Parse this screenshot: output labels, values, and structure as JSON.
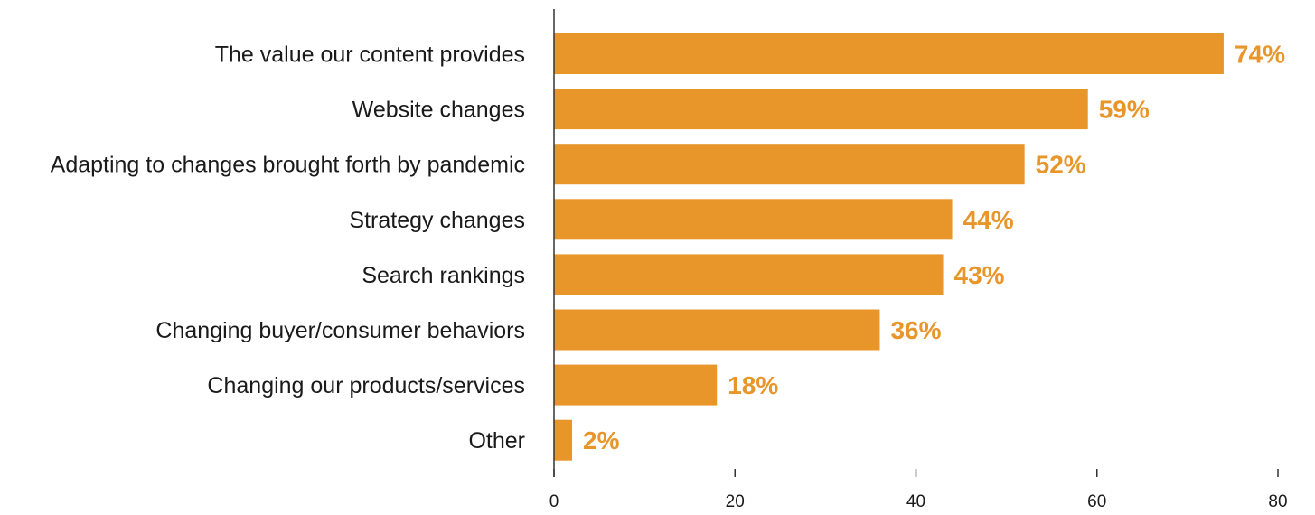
{
  "chart_data": {
    "type": "bar",
    "orientation": "horizontal",
    "categories": [
      "The value our content provides",
      "Website changes",
      "Adapting to changes brought forth by pandemic",
      "Strategy changes",
      "Search rankings",
      "Changing buyer/consumer behaviors",
      "Changing our products/services",
      "Other"
    ],
    "values": [
      74,
      59,
      52,
      44,
      43,
      36,
      18,
      2
    ],
    "data_labels": [
      "74%",
      "59%",
      "52%",
      "44%",
      "43%",
      "36%",
      "18%",
      "2%"
    ],
    "title": "",
    "xlabel": "",
    "ylabel": "",
    "xlim": [
      0,
      80
    ],
    "xticks": [
      0,
      20,
      40,
      60,
      80
    ],
    "grid": false,
    "bar_color": "#E8962A",
    "label_color": "#E8962A"
  }
}
